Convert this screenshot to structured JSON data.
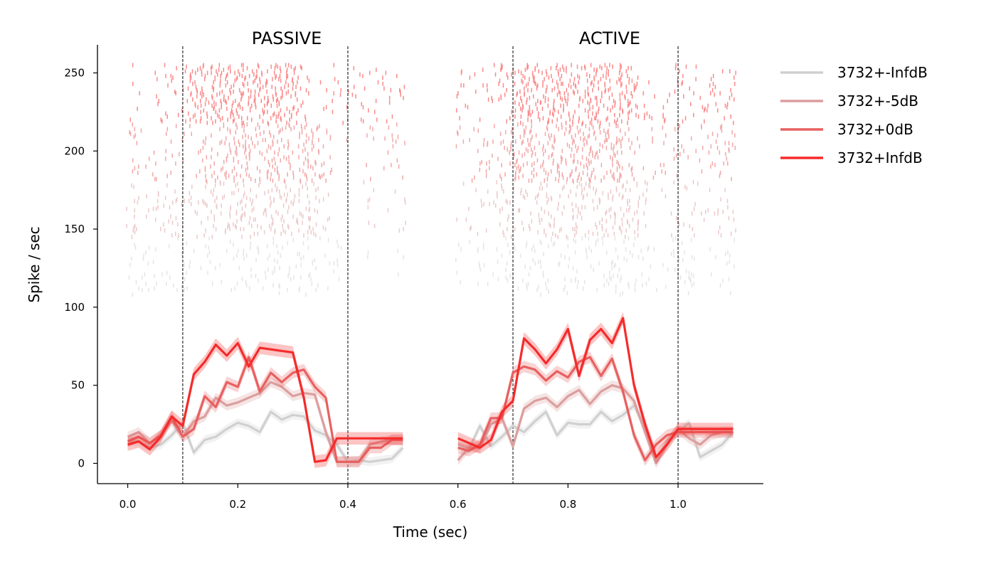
{
  "chart_data": {
    "type": "line",
    "panels": [
      {
        "title": "PASSIVE",
        "x_range": [
          0.0,
          0.5
        ],
        "stim_on": 0.1,
        "stim_off": 0.4
      },
      {
        "title": "ACTIVE",
        "x_range": [
          0.6,
          1.1
        ],
        "stim_on": 0.7,
        "stim_off": 1.0
      }
    ],
    "xlabel": "Time (sec)",
    "ylabel": "Spike / sec",
    "xlim": [
      -0.055,
      1.155
    ],
    "ylim": [
      -13,
      268
    ],
    "xticks": [
      "0.0",
      "0.2",
      "0.4",
      "0.6",
      "0.8",
      "1.0"
    ],
    "xtick_values": [
      0.0,
      0.2,
      0.4,
      0.6,
      0.8,
      1.0
    ],
    "yticks": [
      "0",
      "50",
      "100",
      "150",
      "200",
      "250"
    ],
    "ytick_values": [
      0,
      50,
      100,
      150,
      200,
      250
    ],
    "legend_position": "outside-right-top",
    "x": [
      0.0,
      0.02,
      0.04,
      0.06,
      0.08,
      0.1,
      0.12,
      0.14,
      0.16,
      0.18,
      0.2,
      0.22,
      0.24,
      0.26,
      0.28,
      0.3,
      0.32,
      0.34,
      0.36,
      0.38,
      0.4,
      0.42,
      0.44,
      0.46,
      0.48,
      0.5
    ],
    "series": [
      {
        "name": "3732+-InfdB",
        "color": "#d0d0d0",
        "raster_rows": [
          108,
          145
        ],
        "passive": [
          14,
          14,
          10,
          12,
          18,
          26,
          7,
          15,
          17,
          22,
          26,
          24,
          20,
          33,
          28,
          31,
          30,
          21,
          18,
          12,
          1,
          2,
          1,
          2,
          3,
          10
        ],
        "active": [
          12,
          9,
          24,
          11,
          17,
          24,
          20,
          27,
          33,
          18,
          26,
          25,
          25,
          33,
          27,
          31,
          37,
          23,
          2,
          14,
          20,
          26,
          4,
          8,
          12,
          20
        ]
      },
      {
        "name": "3732+-5dB",
        "color": "#dc9e9e",
        "raster_rows": [
          145,
          181
        ],
        "passive": [
          17,
          20,
          13,
          18,
          27,
          17,
          27,
          30,
          42,
          37,
          39,
          42,
          45,
          52,
          49,
          43,
          45,
          44,
          20,
          1,
          1,
          1,
          12,
          14,
          15,
          15
        ],
        "active": [
          2,
          10,
          10,
          25,
          29,
          11,
          35,
          40,
          42,
          36,
          43,
          47,
          38,
          46,
          50,
          48,
          40,
          20,
          0,
          12,
          22,
          16,
          12,
          18,
          20,
          20
        ]
      },
      {
        "name": "3732+0dB",
        "color": "#e86060",
        "raster_rows": [
          181,
          218
        ],
        "passive": [
          14,
          17,
          13,
          18,
          30,
          17,
          22,
          43,
          36,
          52,
          49,
          68,
          46,
          58,
          52,
          58,
          60,
          49,
          42,
          1,
          1,
          1,
          10,
          10,
          15,
          15
        ],
        "active": [
          10,
          8,
          12,
          29,
          29,
          58,
          62,
          60,
          53,
          59,
          55,
          65,
          68,
          56,
          67,
          46,
          18,
          2,
          12,
          18,
          20,
          20,
          20,
          20,
          20,
          20
        ]
      },
      {
        "name": "3732+InfdB",
        "color": "#f52b2b",
        "raster_rows": [
          218,
          256
        ],
        "passive": [
          12,
          14,
          9,
          17,
          30,
          24,
          57,
          65,
          76,
          69,
          77,
          62,
          74,
          73,
          72,
          71,
          42,
          1,
          2,
          16,
          16,
          16,
          16,
          16,
          16,
          16
        ],
        "active": [
          16,
          13,
          10,
          15,
          33,
          40,
          80,
          73,
          64,
          73,
          86,
          56,
          79,
          86,
          77,
          93,
          50,
          25,
          4,
          12,
          22,
          22,
          22,
          22,
          22,
          22
        ]
      }
    ]
  }
}
